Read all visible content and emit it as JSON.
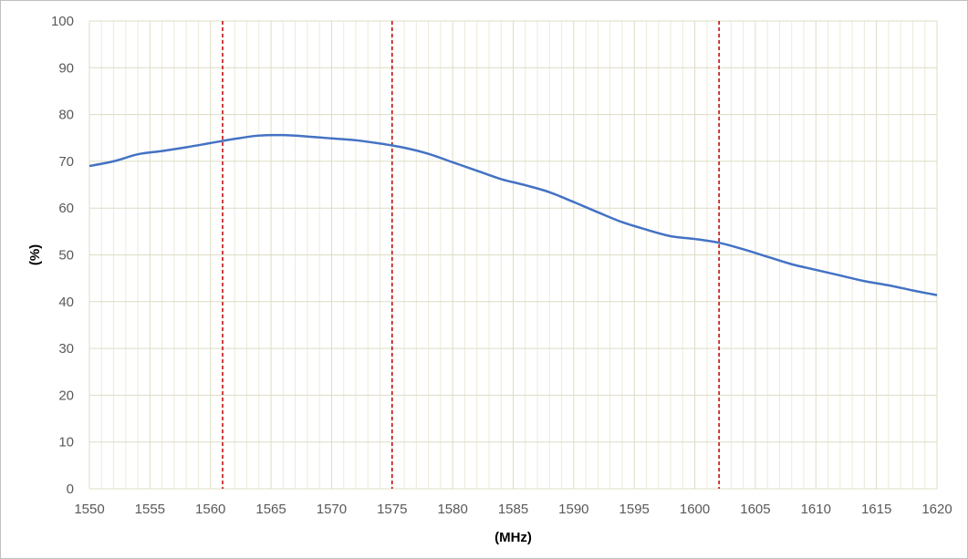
{
  "chart_data": {
    "type": "line",
    "xlabel": "(MHz)",
    "ylabel": "(%)",
    "xlim": [
      1550,
      1620
    ],
    "ylim": [
      0,
      100
    ],
    "x_ticks": [
      "1550",
      "1555",
      "1560",
      "1565",
      "1570",
      "1575",
      "1580",
      "1585",
      "1590",
      "1595",
      "1600",
      "1605",
      "1610",
      "1615",
      "1620"
    ],
    "y_ticks": [
      "0",
      "10",
      "20",
      "30",
      "40",
      "50",
      "60",
      "70",
      "80",
      "90",
      "100"
    ],
    "grid": true,
    "legend": "none",
    "series": [
      {
        "color": "#4472c4",
        "x": [
          1550,
          1552,
          1554,
          1556,
          1558,
          1560,
          1562,
          1564,
          1566,
          1568,
          1570,
          1572,
          1574,
          1576,
          1578,
          1580,
          1582,
          1584,
          1586,
          1588,
          1590,
          1592,
          1594,
          1596,
          1598,
          1600,
          1602,
          1604,
          1606,
          1608,
          1610,
          1612,
          1614,
          1616,
          1618,
          1620
        ],
        "y": [
          69.0,
          70.0,
          71.5,
          72.2,
          73.0,
          73.9,
          74.8,
          75.5,
          75.6,
          75.3,
          74.9,
          74.5,
          73.8,
          72.9,
          71.6,
          69.8,
          68.0,
          66.2,
          64.9,
          63.4,
          61.3,
          59.1,
          57.0,
          55.4,
          54.0,
          53.4,
          52.6,
          51.2,
          49.6,
          48.0,
          46.8,
          45.6,
          44.4,
          43.5,
          42.4,
          41.4
        ]
      }
    ],
    "reference_lines": [
      {
        "x": 1561,
        "color": "#c00000",
        "style": "dashed"
      },
      {
        "x": 1575,
        "color": "#c00000",
        "style": "dashed"
      },
      {
        "x": 1602,
        "color": "#c00000",
        "style": "dashed"
      }
    ]
  }
}
